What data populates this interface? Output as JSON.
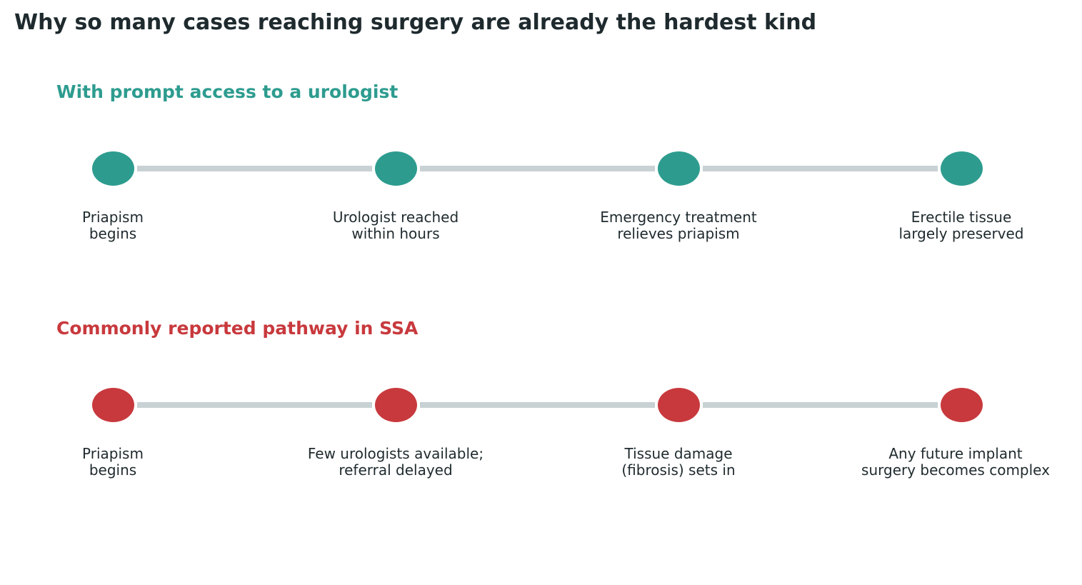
{
  "title": "Why so many cases reaching surgery are already the hardest kind",
  "colors": {
    "prompt_accent": "#2d9c8f",
    "ssa_accent": "#c8393d",
    "connector": "#c8d1d3",
    "text": "#1f2a2e"
  },
  "pathways": [
    {
      "heading": "With prompt access to a urologist",
      "steps": [
        {
          "label": "Priapism\nbegins"
        },
        {
          "label": "Urologist reached\nwithin hours"
        },
        {
          "label": "Emergency treatment\nrelieves priapism"
        },
        {
          "label": "Erectile tissue\nlargely preserved"
        }
      ]
    },
    {
      "heading": "Commonly reported pathway in SSA",
      "steps": [
        {
          "label": "Priapism\nbegins"
        },
        {
          "label": "Few urologists available;\nreferral delayed"
        },
        {
          "label": "Tissue damage\n(fibrosis) sets in"
        },
        {
          "label": "Any future implant\nsurgery becomes complex"
        }
      ]
    }
  ]
}
